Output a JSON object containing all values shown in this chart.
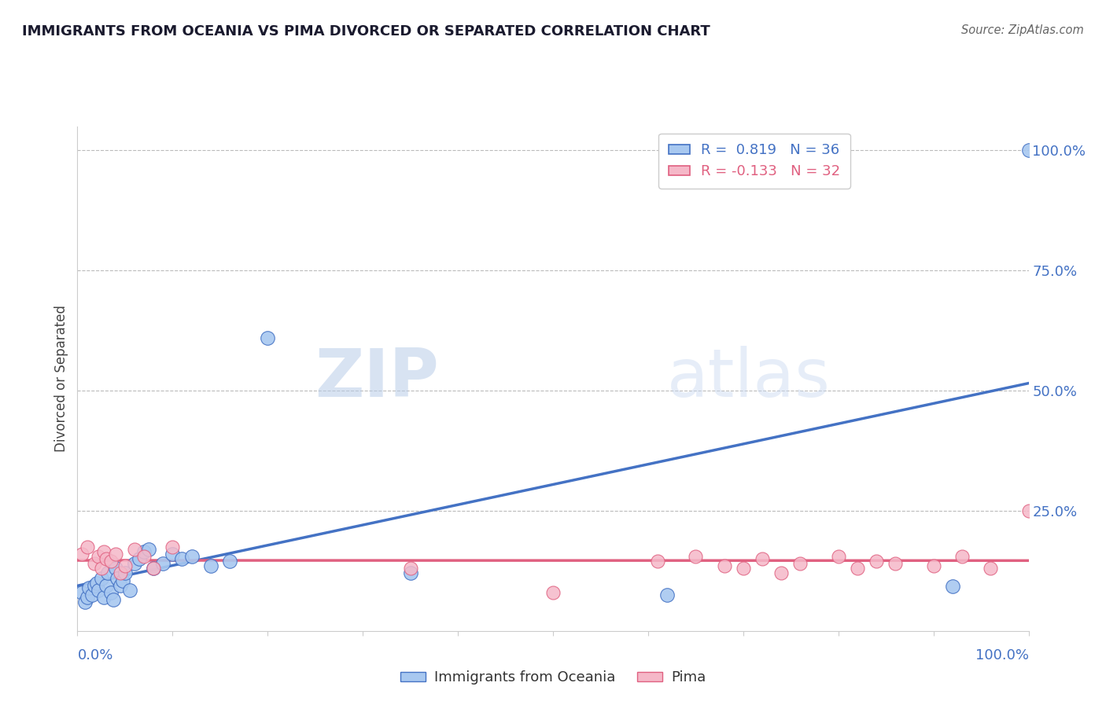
{
  "title": "IMMIGRANTS FROM OCEANIA VS PIMA DIVORCED OR SEPARATED CORRELATION CHART",
  "source": "Source: ZipAtlas.com",
  "ylabel": "Divorced or Separated",
  "legend_label1": "Immigrants from Oceania",
  "legend_label2": "Pima",
  "r1_text": "R =  0.819",
  "n1_text": "N = 36",
  "r2_text": "R = -0.133",
  "n2_text": "N = 32",
  "color_blue": "#a8c8f0",
  "color_pink": "#f5b8c8",
  "line_blue": "#4472C4",
  "line_pink": "#E06080",
  "watermark_zip": "ZIP",
  "watermark_atlas": "atlas",
  "blue_points_x": [
    0.005,
    0.008,
    0.01,
    0.012,
    0.015,
    0.018,
    0.02,
    0.022,
    0.025,
    0.028,
    0.03,
    0.032,
    0.035,
    0.038,
    0.04,
    0.042,
    0.045,
    0.048,
    0.05,
    0.055,
    0.06,
    0.065,
    0.07,
    0.075,
    0.08,
    0.09,
    0.1,
    0.11,
    0.12,
    0.14,
    0.16,
    0.2,
    0.35,
    0.62,
    0.92,
    1.0
  ],
  "blue_points_y": [
    0.08,
    0.06,
    0.07,
    0.09,
    0.075,
    0.095,
    0.1,
    0.085,
    0.11,
    0.07,
    0.095,
    0.12,
    0.08,
    0.065,
    0.13,
    0.11,
    0.095,
    0.105,
    0.12,
    0.085,
    0.14,
    0.15,
    0.165,
    0.17,
    0.13,
    0.14,
    0.16,
    0.15,
    0.155,
    0.135,
    0.145,
    0.61,
    0.12,
    0.075,
    0.093,
    1.0
  ],
  "pink_points_x": [
    0.005,
    0.01,
    0.018,
    0.022,
    0.025,
    0.028,
    0.03,
    0.035,
    0.04,
    0.045,
    0.05,
    0.06,
    0.07,
    0.08,
    0.1,
    0.35,
    0.5,
    0.61,
    0.65,
    0.68,
    0.7,
    0.72,
    0.74,
    0.76,
    0.8,
    0.82,
    0.84,
    0.86,
    0.9,
    0.93,
    0.96,
    1.0
  ],
  "pink_points_y": [
    0.16,
    0.175,
    0.14,
    0.155,
    0.13,
    0.165,
    0.15,
    0.145,
    0.16,
    0.12,
    0.135,
    0.17,
    0.155,
    0.13,
    0.175,
    0.13,
    0.08,
    0.145,
    0.155,
    0.135,
    0.13,
    0.15,
    0.12,
    0.14,
    0.155,
    0.13,
    0.145,
    0.14,
    0.135,
    0.155,
    0.13,
    0.25
  ]
}
